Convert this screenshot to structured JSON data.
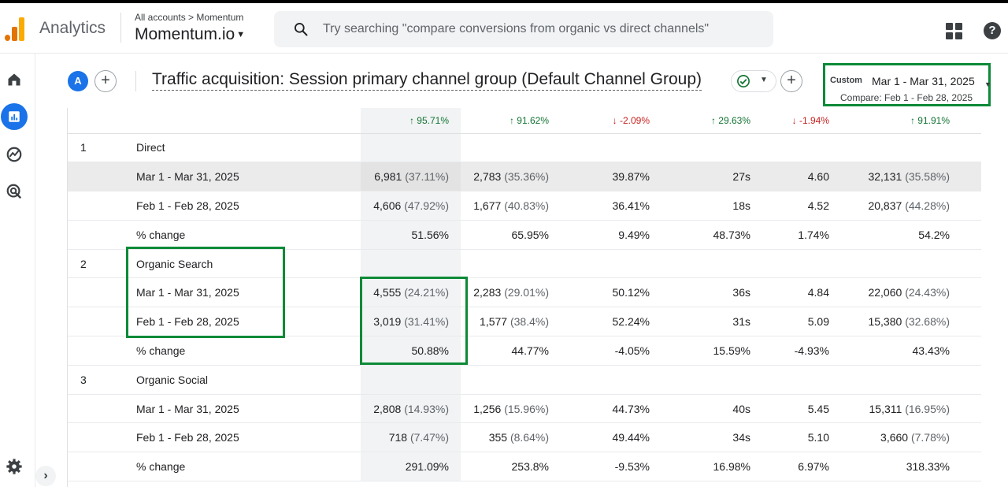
{
  "header": {
    "app_name": "Analytics",
    "breadcrumb": "All accounts > Momentum",
    "account_name": "Momentum.io",
    "search_placeholder": "Try searching \"compare conversions from organic vs direct channels\""
  },
  "report": {
    "avatar_letter": "A",
    "title": "Traffic acquisition: Session primary channel group (Default Channel Group)",
    "date_badge": "Custom",
    "date_range": "Mar 1 - Mar 31, 2025",
    "compare_range": "Compare: Feb 1 - Feb 28, 2025"
  },
  "colors": {
    "accent": "#1a73e8",
    "highlight_box": "#0d8a37",
    "up": "#137333",
    "down": "#c5221f"
  },
  "summary_changes": [
    {
      "dir": "up",
      "arrow": "↑",
      "value": "95.71%"
    },
    {
      "dir": "up",
      "arrow": "↑",
      "value": "91.62%"
    },
    {
      "dir": "down",
      "arrow": "↓",
      "value": "-2.09%"
    },
    {
      "dir": "up",
      "arrow": "↑",
      "value": "29.63%"
    },
    {
      "dir": "down",
      "arrow": "↓",
      "value": "-1.94%"
    },
    {
      "dir": "up",
      "arrow": "↑",
      "value": "91.91%"
    }
  ],
  "rows": [
    {
      "type": "group",
      "index": "1",
      "label": "Direct"
    },
    {
      "type": "data",
      "shaded": true,
      "label": "Mar 1 - Mar 31, 2025",
      "cells": [
        [
          "6,981",
          "(37.11%)"
        ],
        [
          "2,783",
          "(35.36%)"
        ],
        [
          "39.87%",
          ""
        ],
        [
          "27s",
          ""
        ],
        [
          "4.60",
          ""
        ],
        [
          "32,131",
          "(35.58%)"
        ]
      ]
    },
    {
      "type": "data",
      "label": "Feb 1 - Feb 28, 2025",
      "cells": [
        [
          "4,606",
          "(47.92%)"
        ],
        [
          "1,677",
          "(40.83%)"
        ],
        [
          "36.41%",
          ""
        ],
        [
          "18s",
          ""
        ],
        [
          "4.52",
          ""
        ],
        [
          "20,837",
          "(44.28%)"
        ]
      ]
    },
    {
      "type": "data",
      "label": "% change",
      "cells": [
        [
          "51.56%",
          ""
        ],
        [
          "65.95%",
          ""
        ],
        [
          "9.49%",
          ""
        ],
        [
          "48.73%",
          ""
        ],
        [
          "1.74%",
          ""
        ],
        [
          "54.2%",
          ""
        ]
      ]
    },
    {
      "type": "group",
      "index": "2",
      "label": "Organic Search"
    },
    {
      "type": "data",
      "label": "Mar 1 - Mar 31, 2025",
      "cells": [
        [
          "4,555",
          "(24.21%)"
        ],
        [
          "2,283",
          "(29.01%)"
        ],
        [
          "50.12%",
          ""
        ],
        [
          "36s",
          ""
        ],
        [
          "4.84",
          ""
        ],
        [
          "22,060",
          "(24.43%)"
        ]
      ]
    },
    {
      "type": "data",
      "label": "Feb 1 - Feb 28, 2025",
      "cells": [
        [
          "3,019",
          "(31.41%)"
        ],
        [
          "1,577",
          "(38.4%)"
        ],
        [
          "52.24%",
          ""
        ],
        [
          "31s",
          ""
        ],
        [
          "5.09",
          ""
        ],
        [
          "15,380",
          "(32.68%)"
        ]
      ]
    },
    {
      "type": "data",
      "label": "% change",
      "cells": [
        [
          "50.88%",
          ""
        ],
        [
          "44.77%",
          ""
        ],
        [
          "-4.05%",
          ""
        ],
        [
          "15.59%",
          ""
        ],
        [
          "-4.93%",
          ""
        ],
        [
          "43.43%",
          ""
        ]
      ]
    },
    {
      "type": "group",
      "index": "3",
      "label": "Organic Social"
    },
    {
      "type": "data",
      "label": "Mar 1 - Mar 31, 2025",
      "cells": [
        [
          "2,808",
          "(14.93%)"
        ],
        [
          "1,256",
          "(15.96%)"
        ],
        [
          "44.73%",
          ""
        ],
        [
          "40s",
          ""
        ],
        [
          "5.45",
          ""
        ],
        [
          "15,311",
          "(16.95%)"
        ]
      ]
    },
    {
      "type": "data",
      "label": "Feb 1 - Feb 28, 2025",
      "cells": [
        [
          "718",
          "(7.47%)"
        ],
        [
          "355",
          "(8.64%)"
        ],
        [
          "49.44%",
          ""
        ],
        [
          "34s",
          ""
        ],
        [
          "5.10",
          ""
        ],
        [
          "3,660",
          "(7.78%)"
        ]
      ]
    },
    {
      "type": "data",
      "label": "% change",
      "cells": [
        [
          "291.09%",
          ""
        ],
        [
          "253.8%",
          ""
        ],
        [
          "-9.53%",
          ""
        ],
        [
          "16.98%",
          ""
        ],
        [
          "6.97%",
          ""
        ],
        [
          "318.33%",
          ""
        ]
      ]
    }
  ]
}
